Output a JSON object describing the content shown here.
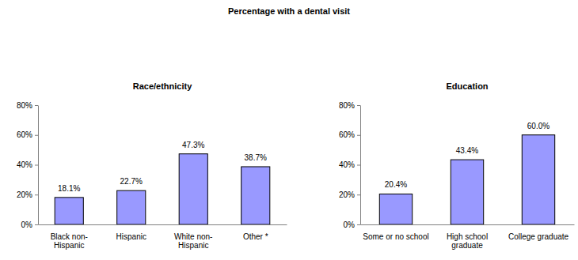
{
  "title": "Percentage with a dental visit",
  "chart_data": [
    {
      "type": "bar",
      "title": "Race/ethnicity",
      "categories": [
        "Black non-Hispanic",
        "Hispanic",
        "White non-Hispanic",
        "Other *"
      ],
      "values": [
        18.1,
        22.7,
        47.3,
        38.7
      ],
      "value_labels": [
        "18.1%",
        "22.7%",
        "47.3%",
        "38.7%"
      ],
      "color": "#9999ff",
      "ylim": [
        0,
        80
      ],
      "yticks": [
        {
          "value": 0,
          "label": "0%"
        },
        {
          "value": 20,
          "label": "20%"
        },
        {
          "value": 40,
          "label": "40%"
        },
        {
          "value": 60,
          "label": "60%"
        },
        {
          "value": 80,
          "label": "80%"
        }
      ],
      "data_labels": true
    },
    {
      "type": "bar",
      "title": "Education",
      "categories": [
        "Some or no school",
        "High school graduate",
        "College graduate"
      ],
      "values": [
        20.4,
        43.4,
        60.0
      ],
      "value_labels": [
        "20.4%",
        "43.4%",
        "60.0%"
      ],
      "color": "#9999ff",
      "ylim": [
        0,
        80
      ],
      "yticks": [
        {
          "value": 0,
          "label": "0%"
        },
        {
          "value": 20,
          "label": "20%"
        },
        {
          "value": 40,
          "label": "40%"
        },
        {
          "value": 60,
          "label": "60%"
        },
        {
          "value": 80,
          "label": "80%"
        }
      ],
      "data_labels": true
    }
  ]
}
